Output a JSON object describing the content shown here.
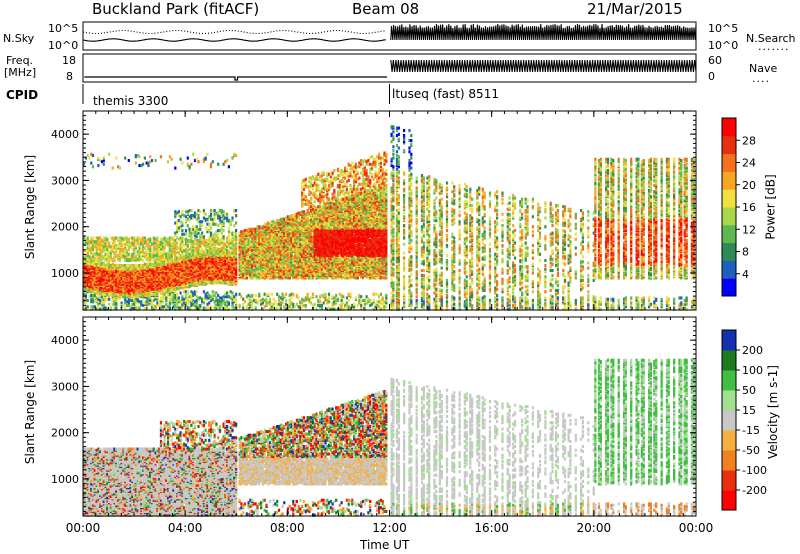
{
  "header": {
    "station": "Buckland Park (fitACF)",
    "beam": "Beam 08",
    "date": "21/Mar/2015"
  },
  "top_panels": {
    "nsky_label": "N.Sky",
    "nsky_ticks": [
      "10^5",
      "10^0"
    ],
    "nsearch_label": "N.Search",
    "nsearch_ticks": [
      "10^5",
      "10^0"
    ],
    "freq_label_1": "Freq.",
    "freq_label_2": "[MHz]",
    "freq_ticks": [
      "18",
      "8"
    ],
    "nave_label": "Nave",
    "nave_ticks": [
      "60",
      "0"
    ],
    "cpid_label": "CPID",
    "cpid_segments": [
      {
        "name": "themis 3300",
        "start_hour": 0,
        "end_hour": 12
      },
      {
        "name": "ltuseq (fast) 8511",
        "start_hour": 12,
        "end_hour": 24
      }
    ]
  },
  "chart_data": [
    {
      "type": "heatmap",
      "title": "",
      "ylabel": "Slant Range [km]",
      "xlabel": "",
      "y_ticks": [
        "1000",
        "2000",
        "3000",
        "4000"
      ],
      "ylim": [
        200,
        4500
      ],
      "xlim": [
        0,
        24
      ],
      "colorbar": {
        "label": "Power [dB]",
        "ticks": [
          "4",
          "8",
          "12",
          "16",
          "20",
          "24",
          "28"
        ],
        "colors": [
          "#0000ff",
          "#1f5fc0",
          "#2e8b57",
          "#5fb84f",
          "#a8d84a",
          "#f2e040",
          "#f5a623",
          "#f27020",
          "#e83010",
          "#ff0000"
        ]
      },
      "gaps_hours": [
        6.0,
        11.95
      ],
      "description_bands": [
        {
          "x": [
            0,
            6
          ],
          "range_km": [
            500,
            1600
          ],
          "level": "high"
        },
        {
          "x": [
            6,
            12
          ],
          "range_km": [
            900,
            2200
          ],
          "level": "high"
        },
        {
          "x": [
            12,
            24
          ],
          "range_km": [
            400,
            3800
          ],
          "level": "mixed"
        }
      ]
    },
    {
      "type": "heatmap",
      "title": "",
      "ylabel": "Slant Range [km]",
      "xlabel": "Time UT",
      "x_ticks": [
        "00:00",
        "04:00",
        "08:00",
        "12:00",
        "16:00",
        "20:00",
        "00:00"
      ],
      "y_ticks": [
        "1000",
        "2000",
        "3000",
        "4000"
      ],
      "ylim": [
        200,
        4500
      ],
      "xlim": [
        0,
        24
      ],
      "colorbar": {
        "label": "Velocity [m s-1]",
        "ticks": [
          "200",
          "100",
          "50",
          "15",
          "-15",
          "-50",
          "-100",
          "-200"
        ],
        "colors": [
          "#1430b0",
          "#1e7a1e",
          "#3fbf3f",
          "#a0e090",
          "#c8c8c8",
          "#f5b041",
          "#f08020",
          "#e83010",
          "#ff0000"
        ]
      }
    }
  ]
}
